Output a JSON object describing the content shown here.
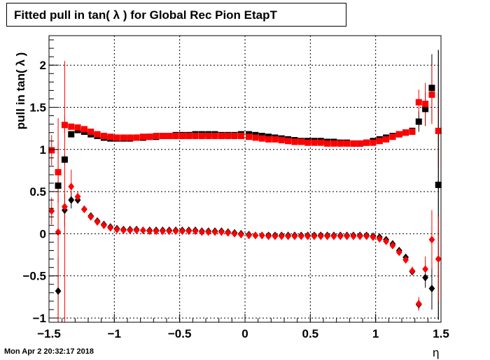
{
  "chart_data": {
    "type": "scatter",
    "title": "Fitted pull in tan( λ ) for Global Rec Pion EtapT",
    "xlabel": "η",
    "ylabel": "pull in tan( λ )",
    "xlim": [
      -1.5,
      1.5
    ],
    "ylim": [
      -1.05,
      2.35
    ],
    "x_ticks": [
      -1.5,
      -1,
      -0.5,
      0,
      0.5,
      1,
      1.5
    ],
    "x_tick_labels": [
      "−1.5",
      "−1",
      "−0.5",
      "0",
      "0.5",
      "1",
      "1.5"
    ],
    "y_ticks": [
      -1,
      -0.5,
      0,
      0.5,
      1,
      1.5,
      2
    ],
    "y_tick_labels": [
      "−1",
      "−0.5",
      "0",
      "0.5",
      "1",
      "1.5",
      "2"
    ],
    "grid": true,
    "legend": "none",
    "colors": {
      "black": "#000000",
      "red": "#ff0000"
    },
    "series": [
      {
        "marker": "square",
        "color": "#000000",
        "points": [
          {
            "x": -1.43,
            "y": 0.57,
            "err": 0.2
          },
          {
            "x": -1.38,
            "y": 0.88,
            "err": 0.06
          },
          {
            "x": -1.33,
            "y": 1.18,
            "err": 0.03
          },
          {
            "x": -1.28,
            "y": 1.23
          },
          {
            "x": -1.23,
            "y": 1.21
          },
          {
            "x": -1.18,
            "y": 1.18
          },
          {
            "x": -1.13,
            "y": 1.16
          },
          {
            "x": -1.08,
            "y": 1.14
          },
          {
            "x": -1.03,
            "y": 1.13
          },
          {
            "x": -0.98,
            "y": 1.13
          },
          {
            "x": -0.93,
            "y": 1.13
          },
          {
            "x": -0.88,
            "y": 1.13
          },
          {
            "x": -0.83,
            "y": 1.14
          },
          {
            "x": -0.78,
            "y": 1.14
          },
          {
            "x": -0.73,
            "y": 1.15
          },
          {
            "x": -0.68,
            "y": 1.15
          },
          {
            "x": -0.63,
            "y": 1.16
          },
          {
            "x": -0.58,
            "y": 1.16
          },
          {
            "x": -0.53,
            "y": 1.17
          },
          {
            "x": -0.48,
            "y": 1.17
          },
          {
            "x": -0.43,
            "y": 1.17
          },
          {
            "x": -0.38,
            "y": 1.18
          },
          {
            "x": -0.33,
            "y": 1.18
          },
          {
            "x": -0.28,
            "y": 1.18
          },
          {
            "x": -0.23,
            "y": 1.18
          },
          {
            "x": -0.18,
            "y": 1.17
          },
          {
            "x": -0.13,
            "y": 1.17
          },
          {
            "x": -0.08,
            "y": 1.17
          },
          {
            "x": -0.03,
            "y": 1.18
          },
          {
            "x": 0.03,
            "y": 1.18
          },
          {
            "x": 0.08,
            "y": 1.17
          },
          {
            "x": 0.13,
            "y": 1.16
          },
          {
            "x": 0.18,
            "y": 1.15
          },
          {
            "x": 0.23,
            "y": 1.14
          },
          {
            "x": 0.28,
            "y": 1.13
          },
          {
            "x": 0.33,
            "y": 1.12
          },
          {
            "x": 0.38,
            "y": 1.11
          },
          {
            "x": 0.43,
            "y": 1.1
          },
          {
            "x": 0.48,
            "y": 1.1
          },
          {
            "x": 0.53,
            "y": 1.1
          },
          {
            "x": 0.58,
            "y": 1.1
          },
          {
            "x": 0.63,
            "y": 1.09
          },
          {
            "x": 0.68,
            "y": 1.09
          },
          {
            "x": 0.73,
            "y": 1.08
          },
          {
            "x": 0.78,
            "y": 1.08
          },
          {
            "x": 0.83,
            "y": 1.07
          },
          {
            "x": 0.88,
            "y": 1.07
          },
          {
            "x": 0.93,
            "y": 1.08
          },
          {
            "x": 0.98,
            "y": 1.1
          },
          {
            "x": 1.03,
            "y": 1.12
          },
          {
            "x": 1.08,
            "y": 1.14
          },
          {
            "x": 1.13,
            "y": 1.16
          },
          {
            "x": 1.18,
            "y": 1.18
          },
          {
            "x": 1.23,
            "y": 1.2
          },
          {
            "x": 1.28,
            "y": 1.22
          },
          {
            "x": 1.33,
            "y": 1.33,
            "err": 0.12
          },
          {
            "x": 1.38,
            "y": 1.48,
            "err": 0.2
          },
          {
            "x": 1.43,
            "y": 1.73,
            "err": 0.4
          },
          {
            "x": 1.48,
            "y": 0.58,
            "err": 1.6
          }
        ]
      },
      {
        "marker": "square",
        "color": "#ff0000",
        "points": [
          {
            "x": -1.48,
            "y": 0.99,
            "err": 0.18
          },
          {
            "x": -1.43,
            "y": 0.73,
            "err": 0.35
          },
          {
            "x": -1.38,
            "y": 1.29,
            "err": 0.1
          },
          {
            "x": -1.33,
            "y": 1.27,
            "err": 0.03
          },
          {
            "x": -1.28,
            "y": 1.26
          },
          {
            "x": -1.23,
            "y": 1.24
          },
          {
            "x": -1.18,
            "y": 1.21
          },
          {
            "x": -1.13,
            "y": 1.18
          },
          {
            "x": -1.08,
            "y": 1.16
          },
          {
            "x": -1.03,
            "y": 1.15
          },
          {
            "x": -0.98,
            "y": 1.14
          },
          {
            "x": -0.93,
            "y": 1.14
          },
          {
            "x": -0.88,
            "y": 1.14
          },
          {
            "x": -0.83,
            "y": 1.14
          },
          {
            "x": -0.78,
            "y": 1.15
          },
          {
            "x": -0.73,
            "y": 1.15
          },
          {
            "x": -0.68,
            "y": 1.16
          },
          {
            "x": -0.63,
            "y": 1.16
          },
          {
            "x": -0.58,
            "y": 1.16
          },
          {
            "x": -0.53,
            "y": 1.16
          },
          {
            "x": -0.48,
            "y": 1.16
          },
          {
            "x": -0.43,
            "y": 1.16
          },
          {
            "x": -0.38,
            "y": 1.16
          },
          {
            "x": -0.33,
            "y": 1.16
          },
          {
            "x": -0.28,
            "y": 1.16
          },
          {
            "x": -0.23,
            "y": 1.16
          },
          {
            "x": -0.18,
            "y": 1.16
          },
          {
            "x": -0.13,
            "y": 1.16
          },
          {
            "x": -0.08,
            "y": 1.16
          },
          {
            "x": -0.03,
            "y": 1.16
          },
          {
            "x": 0.03,
            "y": 1.15
          },
          {
            "x": 0.08,
            "y": 1.14
          },
          {
            "x": 0.13,
            "y": 1.13
          },
          {
            "x": 0.18,
            "y": 1.12
          },
          {
            "x": 0.23,
            "y": 1.12
          },
          {
            "x": 0.28,
            "y": 1.11
          },
          {
            "x": 0.33,
            "y": 1.1
          },
          {
            "x": 0.38,
            "y": 1.09
          },
          {
            "x": 0.43,
            "y": 1.09
          },
          {
            "x": 0.48,
            "y": 1.08
          },
          {
            "x": 0.53,
            "y": 1.08
          },
          {
            "x": 0.58,
            "y": 1.08
          },
          {
            "x": 0.63,
            "y": 1.07
          },
          {
            "x": 0.68,
            "y": 1.07
          },
          {
            "x": 0.73,
            "y": 1.07
          },
          {
            "x": 0.78,
            "y": 1.07
          },
          {
            "x": 0.83,
            "y": 1.07
          },
          {
            "x": 0.88,
            "y": 1.07
          },
          {
            "x": 0.93,
            "y": 1.08
          },
          {
            "x": 0.98,
            "y": 1.08
          },
          {
            "x": 1.03,
            "y": 1.1
          },
          {
            "x": 1.08,
            "y": 1.12
          },
          {
            "x": 1.13,
            "y": 1.15
          },
          {
            "x": 1.18,
            "y": 1.18
          },
          {
            "x": 1.23,
            "y": 1.2
          },
          {
            "x": 1.28,
            "y": 1.21
          },
          {
            "x": 1.33,
            "y": 1.56,
            "err": 0.15
          },
          {
            "x": 1.38,
            "y": 1.54,
            "err": 0.25
          },
          {
            "x": 1.43,
            "y": 1.65,
            "err": 0.35
          },
          {
            "x": 1.48,
            "y": 1.22,
            "err": 0.45
          }
        ]
      },
      {
        "marker": "diamond",
        "color": "#000000",
        "points": [
          {
            "x": -1.43,
            "y": -0.68,
            "err": 0.4
          },
          {
            "x": -1.38,
            "y": 0.28,
            "err": 0.2
          },
          {
            "x": -1.33,
            "y": 0.4,
            "err": 0.1
          },
          {
            "x": -1.28,
            "y": 0.4,
            "err": 0.04
          },
          {
            "x": -1.23,
            "y": 0.29
          },
          {
            "x": -1.18,
            "y": 0.21
          },
          {
            "x": -1.13,
            "y": 0.15
          },
          {
            "x": -1.08,
            "y": 0.11
          },
          {
            "x": -1.03,
            "y": 0.08
          },
          {
            "x": -0.98,
            "y": 0.06
          },
          {
            "x": -0.93,
            "y": 0.05
          },
          {
            "x": -0.88,
            "y": 0.05
          },
          {
            "x": -0.83,
            "y": 0.05
          },
          {
            "x": -0.78,
            "y": 0.04
          },
          {
            "x": -0.73,
            "y": 0.04
          },
          {
            "x": -0.68,
            "y": 0.04
          },
          {
            "x": -0.63,
            "y": 0.04
          },
          {
            "x": -0.58,
            "y": 0.04
          },
          {
            "x": -0.53,
            "y": 0.04
          },
          {
            "x": -0.48,
            "y": 0.04
          },
          {
            "x": -0.43,
            "y": 0.04
          },
          {
            "x": -0.38,
            "y": 0.04
          },
          {
            "x": -0.33,
            "y": 0.03
          },
          {
            "x": -0.28,
            "y": 0.03
          },
          {
            "x": -0.23,
            "y": 0.03
          },
          {
            "x": -0.18,
            "y": 0.03
          },
          {
            "x": -0.13,
            "y": 0.02
          },
          {
            "x": -0.08,
            "y": 0.01
          },
          {
            "x": -0.03,
            "y": 0.0
          },
          {
            "x": 0.03,
            "y": -0.01
          },
          {
            "x": 0.08,
            "y": -0.02
          },
          {
            "x": 0.13,
            "y": -0.02
          },
          {
            "x": 0.18,
            "y": -0.02
          },
          {
            "x": 0.23,
            "y": -0.02
          },
          {
            "x": 0.28,
            "y": -0.02
          },
          {
            "x": 0.33,
            "y": -0.02
          },
          {
            "x": 0.38,
            "y": -0.02
          },
          {
            "x": 0.43,
            "y": -0.02
          },
          {
            "x": 0.48,
            "y": -0.02
          },
          {
            "x": 0.53,
            "y": -0.02
          },
          {
            "x": 0.58,
            "y": -0.02
          },
          {
            "x": 0.63,
            "y": -0.02
          },
          {
            "x": 0.68,
            "y": -0.02
          },
          {
            "x": 0.73,
            "y": -0.02
          },
          {
            "x": 0.78,
            "y": -0.02
          },
          {
            "x": 0.83,
            "y": -0.02
          },
          {
            "x": 0.88,
            "y": -0.02
          },
          {
            "x": 0.93,
            "y": -0.02
          },
          {
            "x": 0.98,
            "y": -0.03
          },
          {
            "x": 1.03,
            "y": -0.04
          },
          {
            "x": 1.08,
            "y": -0.07
          },
          {
            "x": 1.13,
            "y": -0.12
          },
          {
            "x": 1.18,
            "y": -0.2
          },
          {
            "x": 1.23,
            "y": -0.28
          },
          {
            "x": 1.28,
            "y": -0.45,
            "err": 0.04
          },
          {
            "x": 1.33,
            "y": -0.84,
            "err": 0.06
          },
          {
            "x": 1.38,
            "y": -0.52,
            "err": 0.12
          },
          {
            "x": 1.43,
            "y": -0.65,
            "err": 0.25
          },
          {
            "x": 1.48,
            "y": 0.58,
            "err": 1.6
          }
        ]
      },
      {
        "marker": "diamond",
        "color": "#ff0000",
        "points": [
          {
            "x": -1.48,
            "y": 0.27,
            "err": 0.16
          },
          {
            "x": -1.43,
            "y": 0.02,
            "err": 1.35
          },
          {
            "x": -1.38,
            "y": 0.32,
            "err": 1.73
          },
          {
            "x": -1.33,
            "y": 0.56,
            "err": 0.2
          },
          {
            "x": -1.28,
            "y": 0.44,
            "err": 0.06
          },
          {
            "x": -1.23,
            "y": 0.29
          },
          {
            "x": -1.18,
            "y": 0.2
          },
          {
            "x": -1.13,
            "y": 0.14
          },
          {
            "x": -1.08,
            "y": 0.1
          },
          {
            "x": -1.03,
            "y": 0.07
          },
          {
            "x": -0.98,
            "y": 0.05
          },
          {
            "x": -0.93,
            "y": 0.04
          },
          {
            "x": -0.88,
            "y": 0.04
          },
          {
            "x": -0.83,
            "y": 0.04
          },
          {
            "x": -0.78,
            "y": 0.04
          },
          {
            "x": -0.73,
            "y": 0.03
          },
          {
            "x": -0.68,
            "y": 0.03
          },
          {
            "x": -0.63,
            "y": 0.03
          },
          {
            "x": -0.58,
            "y": 0.03
          },
          {
            "x": -0.53,
            "y": 0.03
          },
          {
            "x": -0.48,
            "y": 0.03
          },
          {
            "x": -0.43,
            "y": 0.03
          },
          {
            "x": -0.38,
            "y": 0.03
          },
          {
            "x": -0.33,
            "y": 0.02
          },
          {
            "x": -0.28,
            "y": 0.02
          },
          {
            "x": -0.23,
            "y": 0.02
          },
          {
            "x": -0.18,
            "y": 0.02
          },
          {
            "x": -0.13,
            "y": 0.01
          },
          {
            "x": -0.08,
            "y": 0.0
          },
          {
            "x": -0.03,
            "y": -0.01
          },
          {
            "x": 0.03,
            "y": -0.02
          },
          {
            "x": 0.08,
            "y": -0.02
          },
          {
            "x": 0.13,
            "y": -0.02
          },
          {
            "x": 0.18,
            "y": -0.03
          },
          {
            "x": 0.23,
            "y": -0.03
          },
          {
            "x": 0.28,
            "y": -0.03
          },
          {
            "x": 0.33,
            "y": -0.03
          },
          {
            "x": 0.38,
            "y": -0.03
          },
          {
            "x": 0.43,
            "y": -0.03
          },
          {
            "x": 0.48,
            "y": -0.03
          },
          {
            "x": 0.53,
            "y": -0.03
          },
          {
            "x": 0.58,
            "y": -0.03
          },
          {
            "x": 0.63,
            "y": -0.03
          },
          {
            "x": 0.68,
            "y": -0.03
          },
          {
            "x": 0.73,
            "y": -0.03
          },
          {
            "x": 0.78,
            "y": -0.03
          },
          {
            "x": 0.83,
            "y": -0.03
          },
          {
            "x": 0.88,
            "y": -0.03
          },
          {
            "x": 0.93,
            "y": -0.03
          },
          {
            "x": 0.98,
            "y": -0.04
          },
          {
            "x": 1.03,
            "y": -0.06
          },
          {
            "x": 1.08,
            "y": -0.09
          },
          {
            "x": 1.13,
            "y": -0.14
          },
          {
            "x": 1.18,
            "y": -0.22
          },
          {
            "x": 1.23,
            "y": -0.31
          },
          {
            "x": 1.28,
            "y": -0.44,
            "err": 0.05
          },
          {
            "x": 1.33,
            "y": -0.83,
            "err": 0.08
          },
          {
            "x": 1.38,
            "y": -0.42,
            "err": 0.15
          },
          {
            "x": 1.43,
            "y": -0.07,
            "err": 0.35
          },
          {
            "x": 1.48,
            "y": -0.3,
            "err": 0.5
          }
        ]
      }
    ]
  },
  "footer": {
    "timestamp": "Mon Apr  2 20:32:17 2018"
  }
}
